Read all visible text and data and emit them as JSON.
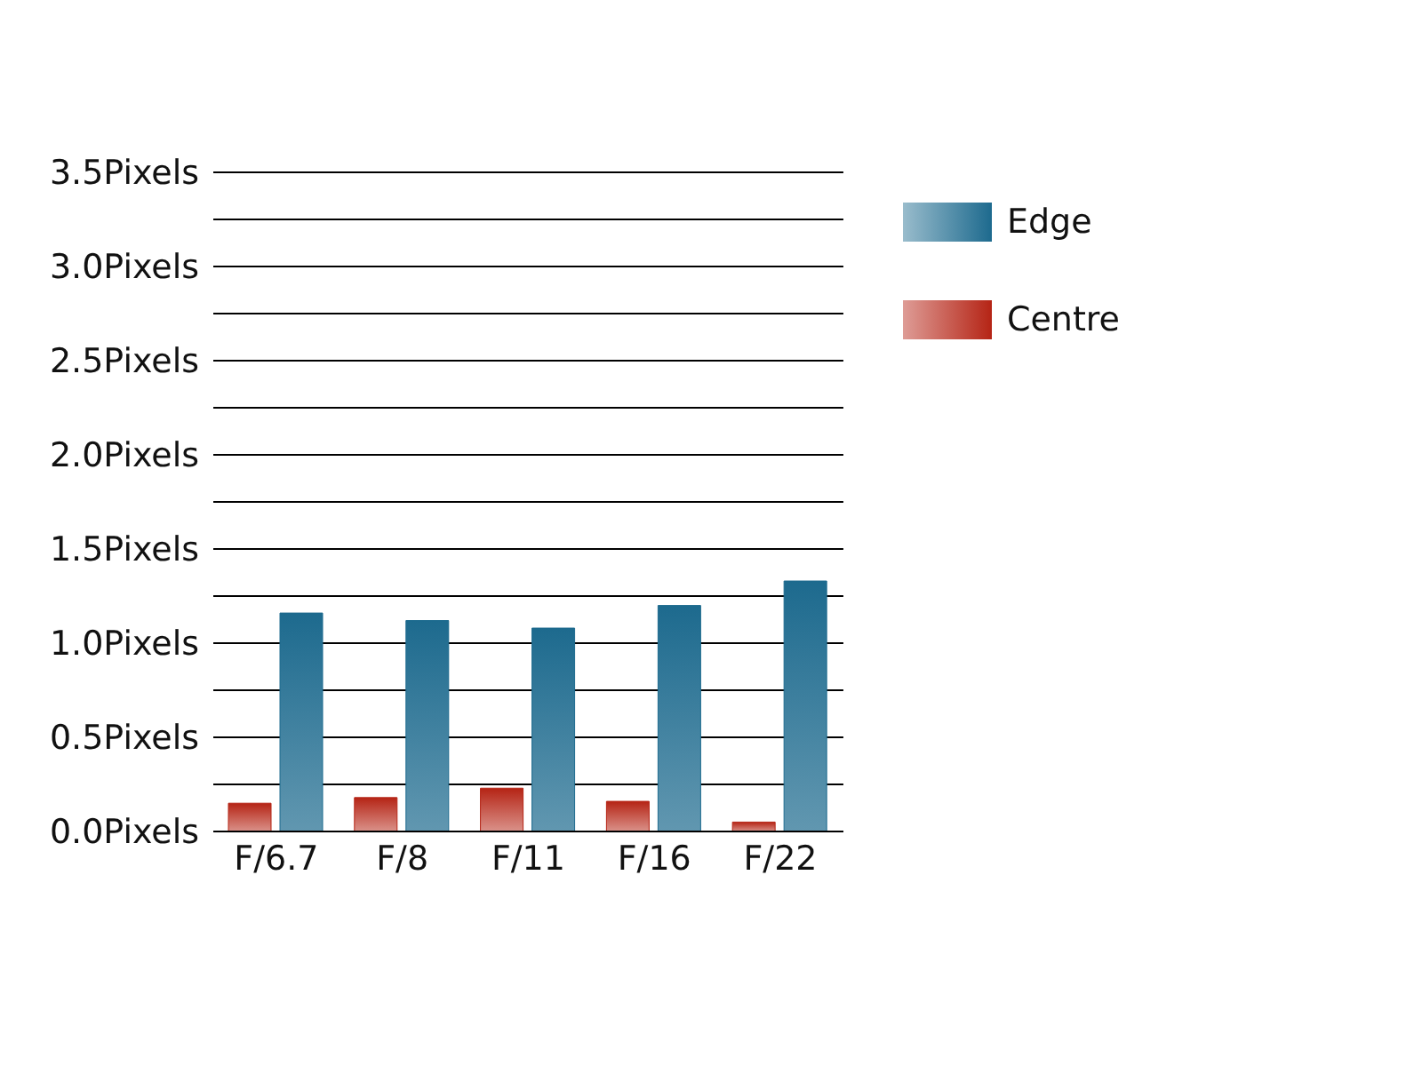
{
  "chart_data": {
    "type": "bar",
    "categories": [
      "F/6.7",
      "F/8",
      "F/11",
      "F/16",
      "F/22"
    ],
    "series": [
      {
        "name": "Centre",
        "color": "#b52415",
        "values": [
          0.15,
          0.18,
          0.23,
          0.16,
          0.05
        ]
      },
      {
        "name": "Edge",
        "color": "#1d6a8e",
        "values": [
          1.16,
          1.12,
          1.08,
          1.2,
          1.33
        ]
      }
    ],
    "ylim": [
      0,
      3.5
    ],
    "yticks": [
      {
        "value": 0,
        "label": "0.0Pixels"
      },
      {
        "value": 0.25,
        "label": null
      },
      {
        "value": 0.5,
        "label": "0.5Pixels"
      },
      {
        "value": 0.75,
        "label": null
      },
      {
        "value": 1,
        "label": "1.0Pixels"
      },
      {
        "value": 1.25,
        "label": null
      },
      {
        "value": 1.5,
        "label": "1.5Pixels"
      },
      {
        "value": 1.75,
        "label": null
      },
      {
        "value": 2,
        "label": "2.0Pixels"
      },
      {
        "value": 2.25,
        "label": null
      },
      {
        "value": 2.5,
        "label": "2.5Pixels"
      },
      {
        "value": 2.75,
        "label": null
      },
      {
        "value": 3,
        "label": "3.0Pixels"
      },
      {
        "value": 3.25,
        "label": null
      },
      {
        "value": 3.5,
        "label": "3.5Pixels"
      }
    ],
    "grid": "y",
    "legend": "top right"
  }
}
